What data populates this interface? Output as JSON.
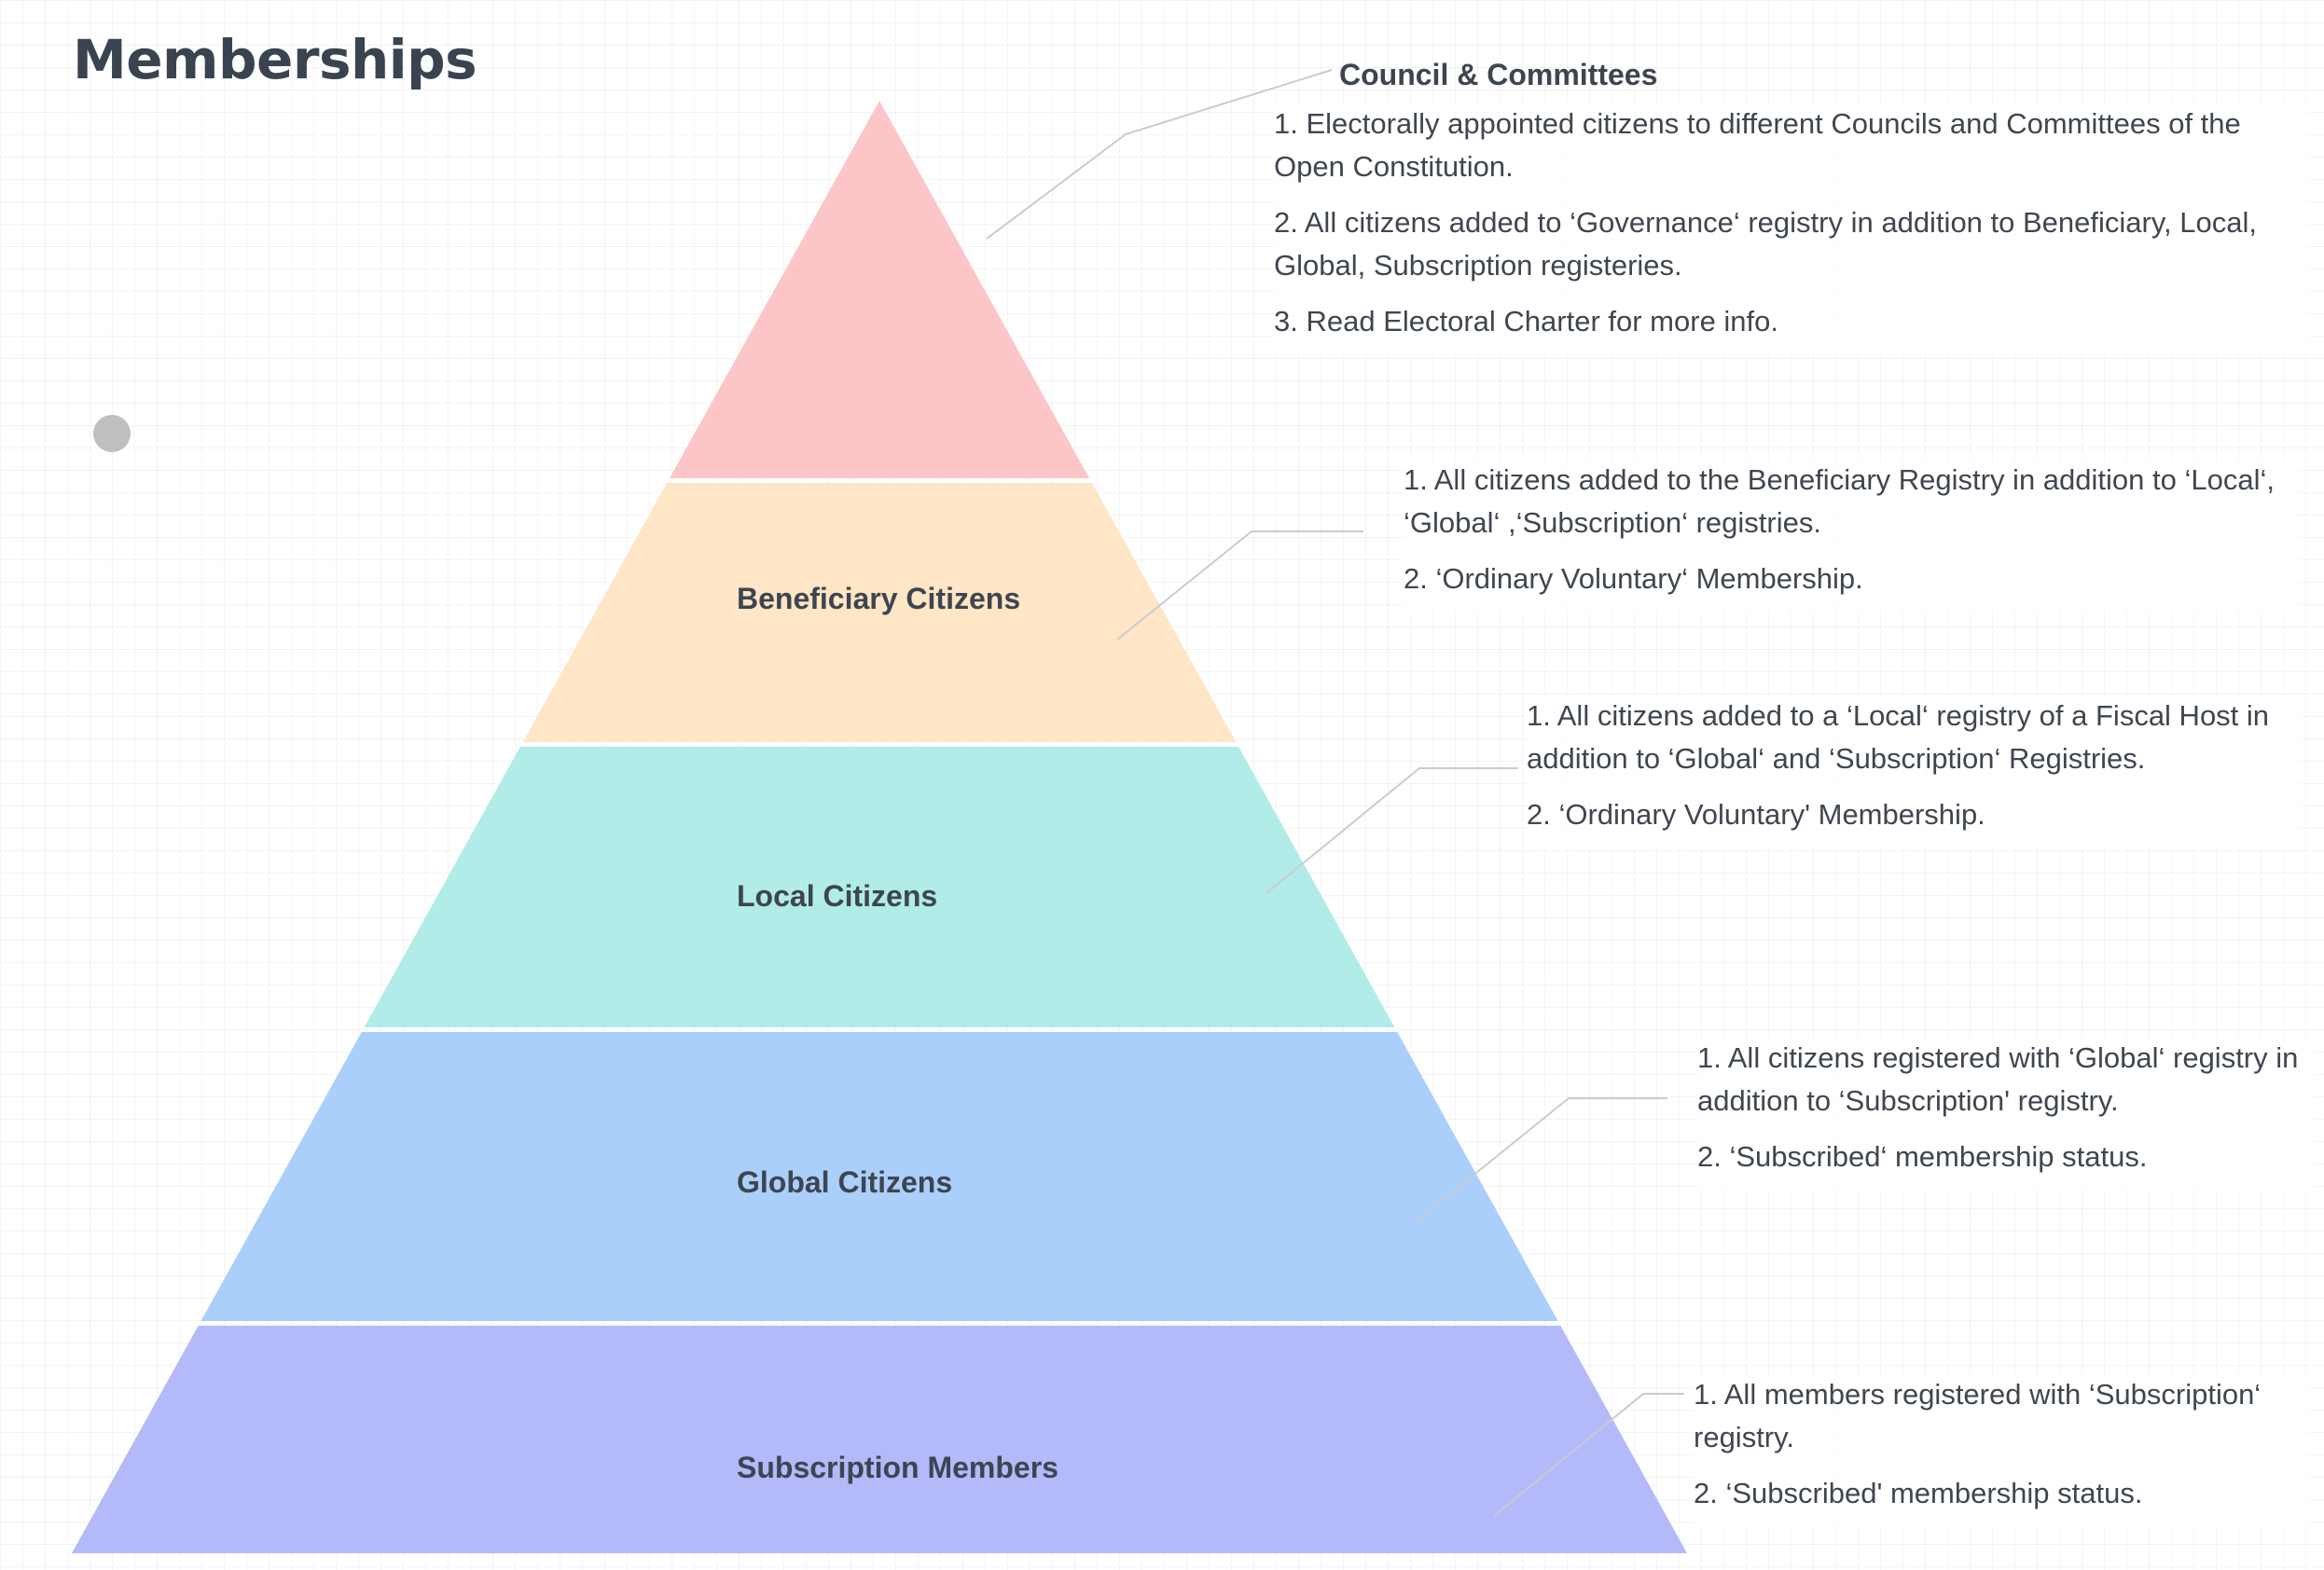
{
  "title": "Memberships",
  "tiers": [
    {
      "id": "council",
      "label": "",
      "color": "#fcc6c9",
      "note_heading": "Council & Committees",
      "notes": [
        "1. Electorally appointed citizens to different Councils and Committees of the Open Constitution.",
        "2. All citizens added to ‘Governance‘  registry in addition to Beneficiary, Local, Global, Subscription registeries.",
        "3. Read Electoral Charter for more info."
      ]
    },
    {
      "id": "beneficiary",
      "label": "Beneficiary Citizens",
      "color": "#fee6c6",
      "note_heading": "",
      "notes": [
        "1. All citizens added to the Beneficiary Registry in addition to ‘Local‘, ‘Global‘ ,‘Subscription‘ registries.",
        "2. ‘Ordinary Voluntary‘ Membership."
      ]
    },
    {
      "id": "local",
      "label": "Local Citizens",
      "color": "#b1ece8",
      "note_heading": "",
      "notes": [
        "1. All citizens added to a ‘Local‘ registry of a Fiscal Host in addition to ‘Global‘ and ‘Subscription‘ Registries.",
        "2. ‘Ordinary Voluntary' Membership."
      ]
    },
    {
      "id": "global",
      "label": "Global Citizens",
      "color": "#aacffa",
      "note_heading": "",
      "notes": [
        "1. All citizens registered with ‘Global‘ registry in addition to ‘Subscription' registry.",
        "2. ‘Subscribed‘ membership status."
      ]
    },
    {
      "id": "subscription",
      "label": "Subscription Members",
      "color": "#b3b9f9",
      "note_heading": "",
      "notes": [
        "1. All members registered with ‘Subscription‘ registry.",
        "2. ‘Subscribed' membership status."
      ]
    }
  ]
}
